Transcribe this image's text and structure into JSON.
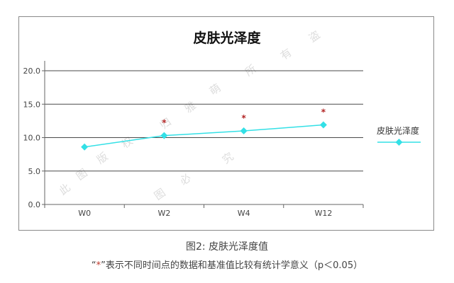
{
  "chart_data": {
    "type": "line",
    "title": "皮肤光泽度",
    "xlabel": "",
    "ylabel": "",
    "categories": [
      "W0",
      "W2",
      "W4",
      "W12"
    ],
    "series": [
      {
        "name": "皮肤光泽度",
        "values": [
          8.6,
          10.3,
          11.0,
          11.9
        ],
        "color": "#33e0e6"
      }
    ],
    "significance_marks": [
      "",
      "*",
      "*",
      "*"
    ],
    "significance_color": "#b22222",
    "ylim": [
      0,
      20
    ],
    "yticks": [
      "0.0",
      "5.0",
      "10.0",
      "15.0",
      "20.0"
    ],
    "ytick_values": [
      0,
      5,
      10,
      15,
      20
    ],
    "grid": true,
    "legend_position": "right",
    "marker": "diamond"
  },
  "caption": {
    "line1": "图2: 皮肤光泽度值",
    "line2_open": "“",
    "line2_star": "*",
    "line2_rest": "”表示不同时间点的数据和基准值比较有统计学意义（p＜0.05）"
  },
  "watermark": [
    "此",
    "图",
    "版",
    "权",
    "归",
    "雅",
    "萌",
    "所",
    "有",
    "盗",
    "图",
    "必",
    "究"
  ]
}
